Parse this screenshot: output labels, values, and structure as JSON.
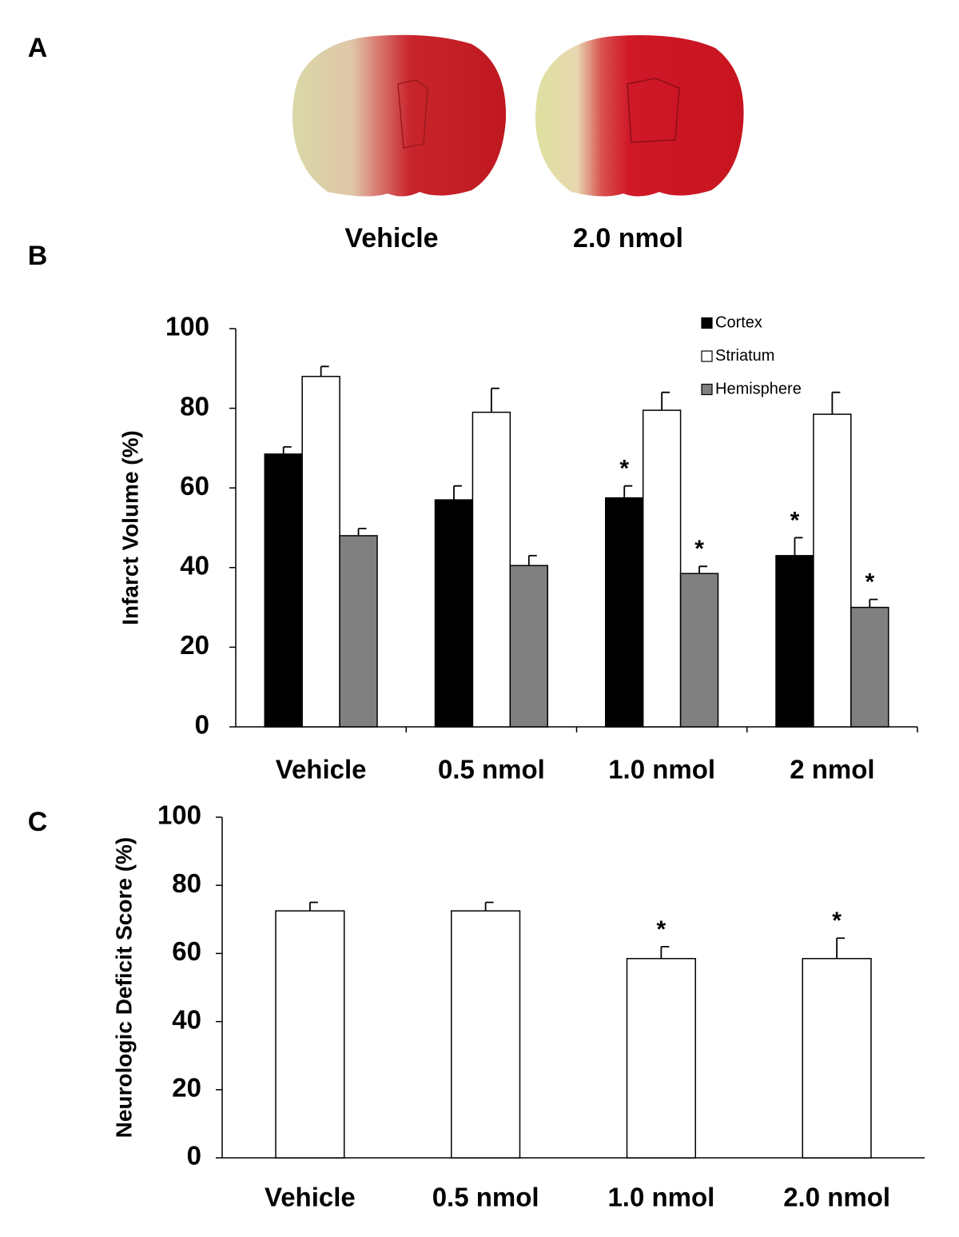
{
  "panel_labels": [
    "A",
    "B",
    "C"
  ],
  "images": [
    {
      "caption": "Vehicle"
    },
    {
      "caption": "2.0 nmol"
    }
  ],
  "chart_data": [
    {
      "type": "bar",
      "y_label": "Infarct Volume (%)",
      "categories": [
        "Vehicle",
        "0.5 nmol",
        "1.0 nmol",
        "2 nmol"
      ],
      "series": [
        {
          "name": "Cortex",
          "color": "#000000",
          "values": [
            68.5,
            57,
            57.5,
            43
          ],
          "errors": [
            1.8,
            3.5,
            3,
            4.5
          ],
          "annotations": [
            null,
            null,
            "*",
            "*"
          ]
        },
        {
          "name": "Striatum",
          "color": "#ffffff",
          "values": [
            88,
            79,
            79.5,
            78.5
          ],
          "errors": [
            2.5,
            6,
            4.5,
            5.5
          ],
          "annotations": [
            null,
            null,
            null,
            null
          ]
        },
        {
          "name": "Hemisphere",
          "color": "#808080",
          "values": [
            48,
            40.5,
            38.5,
            30
          ],
          "errors": [
            1.8,
            2.5,
            1.8,
            2
          ],
          "annotations": [
            null,
            null,
            "*",
            "*"
          ]
        }
      ],
      "ylim": [
        0,
        100
      ],
      "yticks": [
        0,
        20,
        40,
        60,
        80,
        100
      ],
      "legend": "top-right"
    },
    {
      "type": "bar",
      "y_label": "Neurologic Deficit Score (%)",
      "categories": [
        "Vehicle",
        "0.5 nmol",
        "1.0 nmol",
        "2.0 nmol"
      ],
      "values": [
        72.5,
        72.5,
        58.5,
        58.5
      ],
      "errors": [
        2.5,
        2.5,
        3.5,
        6
      ],
      "annotations": [
        null,
        null,
        "*",
        "*"
      ],
      "color": "#ffffff",
      "ylim": [
        0,
        100
      ],
      "yticks": [
        0,
        20,
        40,
        60,
        80,
        100
      ]
    }
  ]
}
